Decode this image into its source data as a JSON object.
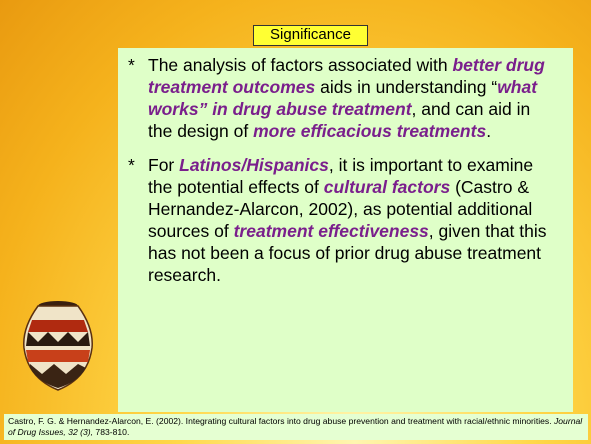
{
  "slide": {
    "title": "Significance",
    "bullets": [
      {
        "marker": "*",
        "runs": [
          "The analysis of factors associated with ",
          "better drug treatment outcomes",
          " aids in understanding “",
          "what works” in drug abuse treatment",
          ", and can aid in the design of ",
          "more efficacious treatments",
          "."
        ]
      },
      {
        "marker": "*",
        "runs": [
          "For ",
          "Latinos/Hispanics",
          ", it is important to examine the potential effects of ",
          "cultural factors",
          " (Castro & Hernandez-Alarcon, 2002), as potential additional sources of ",
          "treatment effectiveness",
          ", given that this has not been a focus of prior drug abuse treatment research."
        ]
      }
    ],
    "citation": [
      "Castro, F. G. & Hernandez-Alarcon, E. (2002).  Integrating cultural factors into drug abuse prevention and treatment with racial/ethnic minorities.  ",
      "Journal of Drug Issues, 32 (3),",
      "  783-810."
    ]
  }
}
